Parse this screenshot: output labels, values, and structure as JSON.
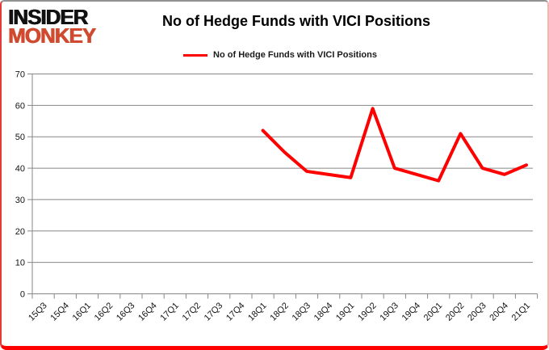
{
  "logo": {
    "line1": "INSIDER",
    "line2": "MONKEY",
    "color_line1": "#111111",
    "color_line2": "#d04a2f"
  },
  "header": {
    "title": "No of Hedge Funds with VICI Positions"
  },
  "legend": {
    "label": "No of Hedge Funds with VICI Positions"
  },
  "chart_data": {
    "type": "line",
    "title": "No of Hedge Funds with VICI Positions",
    "categories": [
      "15Q3",
      "15Q4",
      "16Q1",
      "16Q2",
      "16Q3",
      "16Q4",
      "17Q1",
      "17Q2",
      "17Q3",
      "17Q4",
      "18Q1",
      "18Q2",
      "18Q3",
      "18Q4",
      "19Q1",
      "19Q2",
      "19Q3",
      "19Q4",
      "20Q1",
      "20Q2",
      "20Q3",
      "20Q4",
      "21Q1"
    ],
    "series": [
      {
        "name": "No of Hedge Funds with VICI Positions",
        "color": "#ff0000",
        "values": [
          null,
          null,
          null,
          null,
          null,
          null,
          null,
          null,
          null,
          null,
          52,
          45,
          39,
          38,
          37,
          59,
          40,
          38,
          36,
          51,
          40,
          38,
          41
        ]
      }
    ],
    "xlabel": "",
    "ylabel": "",
    "ylim": [
      0,
      70
    ],
    "ytick_step": 10,
    "grid": true,
    "legend_position": "top-center",
    "axis_color": "#878787",
    "tick_label_color": "#141414"
  },
  "frame_colors": {
    "border_top": "#929292",
    "border_left": "#e03c3c",
    "border_right": "#f0b6b2",
    "border_bottom": "#ff0000"
  }
}
